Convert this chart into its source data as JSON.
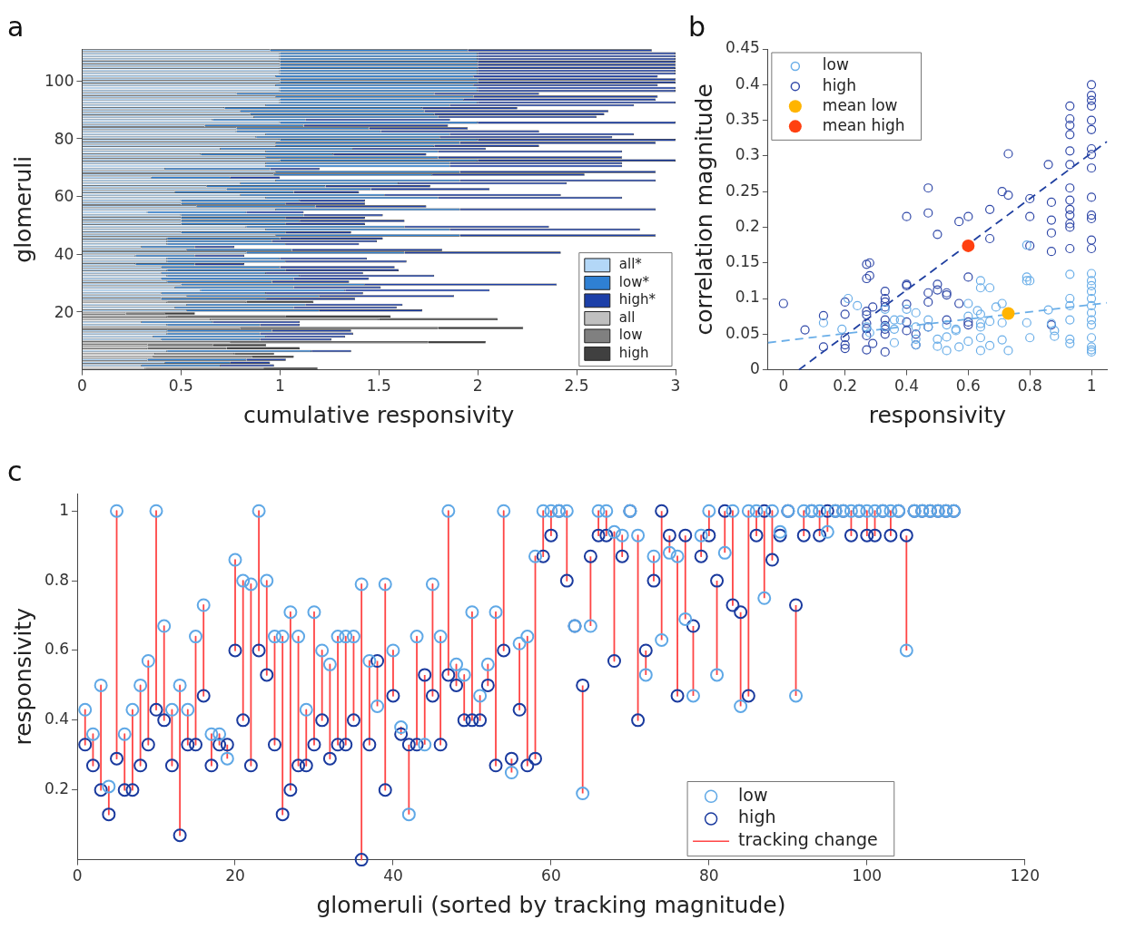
{
  "chart_data": [
    {
      "type": "bar",
      "title": "a",
      "orientation": "horizontal",
      "stacked": true,
      "xlabel": "cumulative responsivity",
      "ylabel": "glomeruli",
      "legend": "bottom right",
      "xlim": [
        0,
        3
      ],
      "xticks": [
        0,
        0.5,
        1,
        1.5,
        2,
        2.5,
        3
      ],
      "categories": [
        null,
        null,
        null,
        null,
        null,
        null,
        null,
        null,
        null,
        null,
        null,
        "100",
        null,
        null,
        null,
        null,
        null,
        null,
        null,
        null,
        null,
        null,
        null,
        null,
        null,
        null,
        null,
        null,
        null,
        null,
        null,
        "80",
        null,
        null,
        null,
        null,
        null,
        null,
        null,
        null,
        null,
        null,
        null,
        null,
        null,
        null,
        null,
        null,
        null,
        null,
        null,
        "60",
        null,
        null,
        null,
        null,
        null,
        null,
        null,
        null,
        null,
        null,
        null,
        null,
        null,
        null,
        null,
        null,
        null,
        null,
        null,
        "40",
        null,
        null,
        null,
        null,
        null,
        null,
        null,
        null,
        null,
        null,
        null,
        null,
        null,
        null,
        null,
        null,
        null,
        null,
        null,
        "20",
        null,
        null,
        null,
        null,
        null,
        null,
        null,
        null,
        null,
        null,
        null,
        null,
        null,
        null,
        null,
        null,
        null,
        null,
        null
      ],
      "series": [
        {
          "name": "all*",
          "color": "#b3d7f7",
          "values": [
            0.95,
            1,
            1,
            1,
            1,
            1,
            1,
            1,
            1,
            0.98,
            1,
            1,
            0.98,
            1,
            1,
            0.78,
            0.98,
            1,
            1,
            0.93,
            0.72,
            0.8,
            0.85,
            0.87,
            0.66,
            1,
            0.62,
            0.78,
            0.78,
            0.93,
            0.88,
            1,
            0.98,
            0.98,
            0.7,
            0.93,
            0.6,
            0.93,
            1,
            0.93,
            0.93,
            0.42,
            0.98,
            0.97,
            0.35,
            0.98,
            0.8,
            0.63,
            0.73,
            0.47,
            0.8,
            0.93,
            0.5,
            0.5,
            0.58,
            0.98,
            0.33,
            0.5,
            0.5,
            0.5,
            0.5,
            0.83,
            0.93,
            0.5,
            0.98,
            0.43,
            0.43,
            0.43,
            0.3,
            0.53,
            0.83,
            0.27,
            0.43,
            0.43,
            0.27,
            0.4,
            0.43,
            0.4,
            0.43,
            0.4,
            0.43,
            0.5,
            0.47,
            0.6,
            0.4,
            0.53,
            0.4,
            null,
            0.53,
            0.47,
            0.53,
            null,
            null,
            null,
            0.3,
            0.43,
            null,
            0.43,
            0.43,
            0.36,
            0.4,
            null,
            null,
            null,
            0.43,
            null,
            null,
            0.33,
            0.42,
            0.3,
            null
          ]
        },
        {
          "name": "low*",
          "color": "#2f80d3",
          "values": [
            1,
            1,
            1,
            1,
            1,
            1,
            1,
            1,
            1,
            1,
            1,
            1,
            1,
            1,
            1,
            1,
            1,
            0.93,
            1,
            0.93,
            1,
            0.93,
            0.93,
            0.93,
            0.47,
            1,
            0.5,
            0.67,
            0.73,
            0.93,
            0.93,
            1,
            0.93,
            0.8,
            0.67,
            0.87,
            0.67,
            0.87,
            1,
            0.93,
            0.93,
            0.53,
            0.93,
            0.8,
            0.4,
            0.93,
            0.8,
            0.6,
            0.73,
            0.6,
            0.73,
            0.87,
            0.6,
            0.53,
            0.6,
            0.93,
            0.5,
            0.62,
            0.53,
            0.6,
            0.53,
            0.8,
            0.93,
            0.53,
            0.93,
            0.57,
            0.53,
            0.6,
            0.27,
            0.53,
            0.8,
            0.3,
            0.57,
            0.6,
            0.3,
            0.6,
            0.6,
            0.53,
            0.67,
            0.67,
            0.53,
            0.93,
            0.6,
            0.73,
            0.53,
            0.67,
            0.53,
            null,
            0.6,
            0.6,
            0.67,
            null,
            null,
            null,
            0.36,
            0.47,
            null,
            0.53,
            0.47,
            0.57,
            0.5,
            null,
            null,
            null,
            0.73,
            null,
            null,
            0.5,
            0.33,
            0.4,
            null
          ]
        },
        {
          "name": "high*",
          "color": "#1c3fa8",
          "values": [
            0.93,
            1,
            1,
            1,
            1,
            1,
            1,
            1,
            1,
            0.93,
            1,
            1,
            0.93,
            1,
            1,
            0.53,
            0.93,
            0.97,
            1,
            0.93,
            0.48,
            0.93,
            0.86,
            0.8,
            0.73,
            1,
            0.73,
            0.5,
            0.8,
            0.93,
            0.87,
            1,
            0.99,
            0.53,
            0.67,
            0.93,
            0.47,
            0.93,
            1,
            0.87,
            0.87,
            0.25,
            0.99,
            0.77,
            0.25,
            0.99,
            0.85,
            0.53,
            0.6,
            0.33,
            0.89,
            0.93,
            0.33,
            0.4,
            0.56,
            0.99,
            0.29,
            0.4,
            0.4,
            0.53,
            0.4,
            0.73,
            0.96,
            0.33,
            0.99,
            0.52,
            0.53,
            0.37,
            0.2,
            0.76,
            0.79,
            0.25,
            0.44,
            0.61,
            0.25,
            0.58,
            0.57,
            0.49,
            0.68,
            0.38,
            0.39,
            0.97,
            0.44,
            0.73,
            0.49,
            0.68,
            0.45,
            null,
            0.49,
            0.52,
            0.52,
            null,
            null,
            null,
            0.44,
            0.2,
            null,
            0.4,
            0.47,
            0.4,
            0.36,
            null,
            null,
            null,
            0.2,
            null,
            null,
            0.2,
            0.2,
            0.27,
            null
          ]
        },
        {
          "name": "all",
          "color": "#c0c0c0",
          "values": [
            null,
            null,
            null,
            null,
            null,
            null,
            null,
            null,
            null,
            null,
            null,
            null,
            null,
            null,
            null,
            null,
            null,
            null,
            null,
            null,
            null,
            null,
            null,
            null,
            null,
            null,
            null,
            null,
            null,
            null,
            null,
            null,
            null,
            null,
            null,
            null,
            null,
            null,
            null,
            null,
            null,
            null,
            null,
            null,
            null,
            null,
            null,
            null,
            null,
            null,
            null,
            null,
            null,
            null,
            null,
            null,
            null,
            null,
            null,
            null,
            null,
            null,
            null,
            null,
            null,
            null,
            null,
            null,
            null,
            null,
            null,
            null,
            null,
            null,
            null,
            null,
            null,
            null,
            null,
            null,
            null,
            null,
            null,
            null,
            null,
            null,
            null,
            0.43,
            null,
            null,
            null,
            0.22,
            0.43,
            0.65,
            null,
            null,
            0.8,
            null,
            null,
            null,
            null,
            0.75,
            0.33,
            0.33,
            null,
            0.37,
            0.36,
            null,
            null,
            null,
            0.32
          ]
        },
        {
          "name": "low",
          "color": "#808080",
          "values": [
            null,
            null,
            null,
            null,
            null,
            null,
            null,
            null,
            null,
            null,
            null,
            null,
            null,
            null,
            null,
            null,
            null,
            null,
            null,
            null,
            null,
            null,
            null,
            null,
            null,
            null,
            null,
            null,
            null,
            null,
            null,
            null,
            null,
            null,
            null,
            null,
            null,
            null,
            null,
            null,
            null,
            null,
            null,
            null,
            null,
            null,
            null,
            null,
            null,
            null,
            null,
            null,
            null,
            null,
            null,
            null,
            null,
            null,
            null,
            null,
            null,
            null,
            null,
            null,
            null,
            null,
            null,
            null,
            null,
            null,
            null,
            null,
            null,
            null,
            null,
            null,
            null,
            null,
            null,
            null,
            null,
            null,
            null,
            null,
            null,
            null,
            null,
            0.4,
            null,
            null,
            null,
            0.2,
            0.6,
            0.85,
            null,
            null,
            1,
            null,
            null,
            null,
            null,
            1,
            0.33,
            0.4,
            null,
            0.4,
            0.5,
            null,
            null,
            null,
            0.6
          ]
        },
        {
          "name": "high",
          "color": "#404040",
          "values": [
            null,
            null,
            null,
            null,
            null,
            null,
            null,
            null,
            null,
            null,
            null,
            null,
            null,
            null,
            null,
            null,
            null,
            null,
            null,
            null,
            null,
            null,
            null,
            null,
            null,
            null,
            null,
            null,
            null,
            null,
            null,
            null,
            null,
            null,
            null,
            null,
            null,
            null,
            null,
            null,
            null,
            null,
            null,
            null,
            null,
            null,
            null,
            null,
            null,
            null,
            null,
            null,
            null,
            null,
            null,
            null,
            null,
            null,
            null,
            null,
            null,
            null,
            null,
            null,
            null,
            null,
            null,
            null,
            null,
            null,
            null,
            null,
            null,
            null,
            null,
            null,
            null,
            null,
            null,
            null,
            null,
            null,
            null,
            null,
            null,
            null,
            null,
            0.34,
            null,
            null,
            null,
            0.15,
            0.53,
            0.6,
            null,
            null,
            0.43,
            null,
            null,
            null,
            null,
            0.29,
            0.27,
            0.37,
            null,
            0.2,
            0.21,
            null,
            null,
            null,
            0.27
          ]
        }
      ]
    },
    {
      "type": "scatter",
      "title": "b",
      "xlabel": "responsivity",
      "ylabel": "correlation magnitude",
      "legend": "top left",
      "marker": "circle",
      "xlim": [
        -0.05,
        1.05
      ],
      "xticks": [
        0,
        0.2,
        0.4,
        0.6,
        0.8,
        1
      ],
      "ylim": [
        0,
        0.45
      ],
      "yticks": [
        0,
        0.05,
        0.1,
        0.15,
        0.2,
        0.25,
        0.3,
        0.35,
        0.4,
        0.45
      ],
      "series": [
        {
          "name": "low",
          "color": "#6aaee8",
          "x": [
            0.13,
            0.19,
            0.21,
            0.24,
            0.27,
            0.28,
            0.33,
            0.33,
            0.36,
            0.36,
            0.36,
            0.38,
            0.4,
            0.43,
            0.43,
            0.43,
            0.43,
            0.47,
            0.47,
            0.5,
            0.5,
            0.53,
            0.53,
            0.53,
            0.56,
            0.56,
            0.57,
            0.6,
            0.6,
            0.6,
            0.63,
            0.64,
            0.64,
            0.64,
            0.64,
            0.64,
            0.64,
            0.64,
            0.67,
            0.67,
            0.67,
            0.69,
            0.71,
            0.71,
            0.71,
            0.73,
            0.79,
            0.79,
            0.79,
            0.79,
            0.8,
            0.8,
            0.86,
            0.87,
            0.88,
            0.88,
            0.93,
            0.93,
            0.93,
            0.93,
            0.93,
            0.93,
            1,
            1,
            1,
            1,
            1,
            1,
            1,
            1,
            1,
            1,
            1,
            1,
            1
          ],
          "values": [
            0.066,
            0.057,
            0.1,
            0.09,
            0.06,
            0.052,
            0.085,
            0.06,
            0.07,
            0.057,
            0.038,
            0.07,
            0.085,
            0.08,
            0.06,
            0.043,
            0.035,
            0.07,
            0.06,
            0.043,
            0.033,
            0.063,
            0.046,
            0.027,
            0.057,
            0.055,
            0.032,
            0.093,
            0.075,
            0.04,
            0.083,
            0.125,
            0.115,
            0.078,
            0.065,
            0.06,
            0.045,
            0.027,
            0.115,
            0.068,
            0.034,
            0.088,
            0.093,
            0.066,
            0.042,
            0.027,
            0.13,
            0.125,
            0.175,
            0.066,
            0.125,
            0.045,
            0.084,
            0.065,
            0.055,
            0.047,
            0.134,
            0.1,
            0.09,
            0.07,
            0.043,
            0.037,
            0.135,
            0.125,
            0.118,
            0.11,
            0.1,
            0.09,
            0.08,
            0.07,
            0.063,
            0.045,
            0.032,
            0.028,
            0.025
          ]
        },
        {
          "name": "high",
          "color": "#3048a8",
          "x": [
            0,
            0.07,
            0.13,
            0.13,
            0.2,
            0.2,
            0.2,
            0.2,
            0.2,
            0.27,
            0.28,
            0.27,
            0.28,
            0.27,
            0.27,
            0.27,
            0.27,
            0.27,
            0.27,
            0.29,
            0.29,
            0.33,
            0.33,
            0.33,
            0.33,
            0.33,
            0.33,
            0.33,
            0.33,
            0.33,
            0.4,
            0.4,
            0.4,
            0.4,
            0.4,
            0.4,
            0.43,
            0.43,
            0.47,
            0.47,
            0.47,
            0.47,
            0.47,
            0.5,
            0.5,
            0.5,
            0.53,
            0.53,
            0.53,
            0.57,
            0.57,
            0.6,
            0.6,
            0.6,
            0.6,
            0.67,
            0.67,
            0.71,
            0.73,
            0.73,
            0.8,
            0.8,
            0.8,
            0.86,
            0.87,
            0.87,
            0.87,
            0.87,
            0.87,
            0.93,
            0.93,
            0.93,
            0.93,
            0.93,
            0.93,
            0.93,
            0.93,
            0.93,
            0.93,
            0.93,
            0.93,
            0.93,
            1,
            1,
            1,
            1,
            1,
            1,
            1,
            1,
            1,
            1,
            1,
            1,
            1,
            1
          ],
          "values": [
            0.093,
            0.056,
            0.076,
            0.032,
            0.095,
            0.078,
            0.045,
            0.035,
            0.03,
            0.148,
            0.15,
            0.128,
            0.132,
            0.082,
            0.077,
            0.065,
            0.058,
            0.048,
            0.028,
            0.088,
            0.037,
            0.11,
            0.1,
            0.095,
            0.088,
            0.07,
            0.062,
            0.057,
            0.05,
            0.025,
            0.215,
            0.12,
            0.118,
            0.092,
            0.067,
            0.055,
            0.05,
            0.035,
            0.255,
            0.22,
            0.108,
            0.095,
            0.06,
            0.19,
            0.12,
            0.112,
            0.108,
            0.105,
            0.07,
            0.208,
            0.093,
            0.215,
            0.13,
            0.067,
            0.063,
            0.225,
            0.184,
            0.25,
            0.245,
            0.303,
            0.24,
            0.215,
            0.174,
            0.288,
            0.235,
            0.21,
            0.192,
            0.166,
            0.063,
            0.37,
            0.352,
            0.343,
            0.33,
            0.307,
            0.288,
            0.255,
            0.238,
            0.225,
            0.217,
            0.205,
            0.2,
            0.17,
            0.4,
            0.385,
            0.378,
            0.37,
            0.35,
            0.337,
            0.31,
            0.302,
            0.283,
            0.242,
            0.217,
            0.212,
            0.182,
            0.17
          ]
        },
        {
          "name": "mean low",
          "color": "#ffb400",
          "marker": "circle",
          "x": [
            0.73
          ],
          "values": [
            0.079
          ]
        },
        {
          "name": "mean high",
          "color": "#ff4010",
          "marker": "circle",
          "x": [
            0.6
          ],
          "values": [
            0.174
          ]
        },
        {
          "type": "line",
          "color": "#6aaee8",
          "line_style": "dashed",
          "marker": "none",
          "x": [
            -0.05,
            1.05
          ],
          "values": [
            0.038,
            0.094
          ]
        },
        {
          "type": "line",
          "color": "#1f3fa0",
          "line_style": "dashed",
          "marker": "none",
          "x": [
            0.05,
            1.05
          ],
          "values": [
            0,
            0.32
          ]
        }
      ]
    },
    {
      "type": "scatter",
      "title": "c",
      "xlabel": "glomeruli (sorted by tracking magnitude)",
      "ylabel": "responsivity",
      "legend": "bottom right",
      "marker": "circle",
      "xlim": [
        0,
        120
      ],
      "xticks": [
        0,
        20,
        40,
        60,
        80,
        100,
        120
      ],
      "ylim": [
        0,
        1.05
      ],
      "yticks": [
        0.2,
        0.4,
        0.6,
        0.8,
        1
      ],
      "x": [
        1,
        2,
        3,
        4,
        5,
        6,
        7,
        8,
        9,
        10,
        11,
        12,
        13,
        14,
        15,
        16,
        17,
        18,
        19,
        20,
        21,
        22,
        23,
        24,
        25,
        26,
        27,
        28,
        29,
        30,
        31,
        32,
        33,
        34,
        35,
        36,
        37,
        38,
        39,
        40,
        41,
        42,
        43,
        44,
        45,
        46,
        47,
        48,
        49,
        50,
        51,
        52,
        53,
        54,
        55,
        56,
        57,
        58,
        59,
        60,
        61,
        62,
        63,
        64,
        65,
        66,
        67,
        68,
        69,
        70,
        71,
        72,
        73,
        74,
        75,
        76,
        77,
        78,
        79,
        80,
        81,
        82,
        83,
        84,
        85,
        86,
        87,
        88,
        89,
        90,
        91,
        92,
        93,
        94,
        95,
        96,
        97,
        98,
        99,
        100,
        101,
        102,
        103,
        104,
        105,
        106,
        107,
        108,
        109,
        110,
        111
      ],
      "series": [
        {
          "name": "low",
          "color": "#5fa8e6",
          "values": [
            0.43,
            0.36,
            0.5,
            0.21,
            1,
            0.36,
            0.43,
            0.5,
            0.57,
            1,
            0.67,
            0.43,
            0.5,
            0.43,
            0.64,
            0.73,
            0.36,
            0.36,
            0.29,
            0.86,
            0.8,
            0.79,
            1,
            0.8,
            0.64,
            0.64,
            0.71,
            0.64,
            0.43,
            0.71,
            0.6,
            0.56,
            0.64,
            0.64,
            0.64,
            0.79,
            0.57,
            0.44,
            0.79,
            0.6,
            0.38,
            0.13,
            0.64,
            0.33,
            0.79,
            0.64,
            1,
            0.56,
            0.53,
            0.71,
            0.47,
            0.56,
            0.71,
            1,
            0.25,
            0.62,
            0.64,
            0.87,
            1,
            1,
            1,
            1,
            0.67,
            0.19,
            0.67,
            1,
            1,
            0.94,
            0.93,
            1,
            0.93,
            0.53,
            0.87,
            0.63,
            0.88,
            0.87,
            0.69,
            0.47,
            0.93,
            1,
            0.53,
            0.88,
            1,
            0.44,
            1,
            1,
            0.75,
            1,
            0.94,
            1,
            0.47,
            1,
            1,
            1,
            0.94,
            1,
            1,
            1,
            1,
            1,
            1,
            1,
            1,
            1,
            0.6,
            1,
            1,
            1,
            1,
            1,
            1
          ]
        },
        {
          "name": "high",
          "color": "#1a3a9e",
          "values": [
            0.33,
            0.27,
            0.2,
            0.13,
            0.29,
            0.2,
            0.2,
            0.27,
            0.33,
            0.43,
            0.4,
            0.27,
            0.07,
            0.33,
            0.33,
            0.47,
            0.27,
            0.33,
            0.33,
            0.6,
            0.4,
            0.27,
            0.6,
            0.53,
            0.33,
            0.13,
            0.2,
            0.27,
            0.27,
            0.33,
            0.4,
            0.29,
            0.33,
            0.33,
            0.4,
            0,
            0.33,
            0.57,
            0.2,
            0.47,
            0.36,
            0.33,
            0.33,
            0.53,
            0.47,
            0.33,
            0.53,
            0.5,
            0.4,
            0.4,
            0.4,
            0.5,
            0.27,
            0.6,
            0.29,
            0.43,
            0.27,
            0.29,
            0.87,
            0.93,
            1,
            0.8,
            0.67,
            0.5,
            0.87,
            0.93,
            0.93,
            0.57,
            0.87,
            1,
            0.4,
            0.6,
            0.8,
            1,
            0.93,
            0.47,
            0.93,
            0.67,
            0.87,
            0.93,
            0.8,
            1,
            0.73,
            0.71,
            0.47,
            0.93,
            1,
            0.86,
            0.93,
            1,
            0.73,
            0.93,
            1,
            0.93,
            1,
            1,
            1,
            0.93,
            1,
            0.93,
            0.93,
            1,
            0.93,
            1,
            0.93,
            1,
            1,
            1,
            1,
            1,
            1
          ]
        },
        {
          "name": "tracking change",
          "type": "line",
          "color": "#ff4545",
          "marker": "none",
          "x": [
            1,
            1,
            null,
            2,
            2,
            null,
            3,
            3,
            null,
            4,
            4,
            null,
            5,
            5,
            null,
            6,
            6,
            null,
            7,
            7,
            null,
            8,
            8,
            null,
            9,
            9,
            null,
            10,
            10,
            null,
            11,
            11,
            null,
            12,
            12,
            null,
            13,
            13,
            null,
            14,
            14,
            null,
            15,
            15,
            null,
            16,
            16,
            null,
            17,
            17,
            null,
            18,
            18,
            null,
            19,
            19,
            null,
            20,
            20,
            null,
            21,
            21,
            null,
            22,
            22,
            null,
            23,
            23,
            null,
            24,
            24,
            null,
            25,
            25,
            null,
            26,
            26,
            null,
            27,
            27,
            null,
            28,
            28,
            null,
            29,
            29,
            null,
            30,
            30,
            null,
            31,
            31,
            null,
            32,
            32,
            null,
            33,
            33,
            null,
            34,
            34,
            null,
            35,
            35,
            null,
            36,
            36,
            null,
            37,
            37,
            null,
            38,
            38,
            null,
            39,
            39,
            null,
            40,
            40,
            null,
            41,
            41,
            null,
            42,
            42,
            null,
            43,
            43,
            null,
            44,
            44,
            null,
            45,
            45,
            null,
            46,
            46,
            null,
            47,
            47,
            null,
            48,
            48,
            null,
            49,
            49,
            null,
            50,
            50,
            null,
            51,
            51,
            null,
            52,
            52,
            null,
            53,
            53,
            null,
            54,
            54,
            null,
            55,
            55,
            null,
            56,
            56,
            null,
            57,
            57,
            null,
            58,
            58,
            null,
            59,
            59,
            null,
            60,
            60,
            null,
            62,
            62,
            null,
            64,
            64,
            null,
            65,
            65,
            null,
            66,
            66,
            null,
            67,
            67,
            null,
            68,
            68,
            null,
            69,
            69,
            null,
            71,
            71,
            null,
            72,
            72,
            null,
            73,
            73,
            null,
            74,
            74,
            null,
            75,
            75,
            null,
            76,
            76,
            null,
            77,
            77,
            null,
            78,
            78,
            null,
            79,
            79,
            null,
            80,
            80,
            null,
            81,
            81,
            null,
            82,
            82,
            null,
            83,
            83,
            null,
            84,
            84,
            null,
            85,
            85,
            null,
            86,
            86,
            null,
            87,
            87,
            null,
            88,
            88,
            null,
            91,
            91,
            null,
            92,
            92,
            null,
            94,
            94,
            null,
            95,
            95,
            null,
            98,
            98,
            null,
            100,
            100,
            null,
            101,
            101,
            null,
            103,
            103,
            null,
            105,
            105,
            null
          ],
          "values": [
            0.43,
            0.33,
            null,
            0.36,
            0.27,
            null,
            0.5,
            0.2,
            null,
            0.21,
            0.13,
            null,
            1,
            0.29,
            null,
            0.36,
            0.2,
            null,
            0.43,
            0.2,
            null,
            0.5,
            0.27,
            null,
            0.57,
            0.33,
            null,
            1,
            0.43,
            null,
            0.67,
            0.4,
            null,
            0.43,
            0.27,
            null,
            0.5,
            0.07,
            null,
            0.43,
            0.33,
            null,
            0.64,
            0.33,
            null,
            0.73,
            0.47,
            null,
            0.36,
            0.27,
            null,
            0.36,
            0.33,
            null,
            0.29,
            0.33,
            null,
            0.86,
            0.6,
            null,
            0.8,
            0.4,
            null,
            0.79,
            0.27,
            null,
            1,
            0.6,
            null,
            0.8,
            0.53,
            null,
            0.64,
            0.33,
            null,
            0.64,
            0.13,
            null,
            0.71,
            0.2,
            null,
            0.64,
            0.27,
            null,
            0.43,
            0.27,
            null,
            0.71,
            0.33,
            null,
            0.6,
            0.4,
            null,
            0.56,
            0.29,
            null,
            0.64,
            0.33,
            null,
            0.64,
            0.33,
            null,
            0.64,
            0.4,
            null,
            0.79,
            0,
            null,
            0.57,
            0.33,
            null,
            0.44,
            0.57,
            null,
            0.79,
            0.2,
            null,
            0.6,
            0.47,
            null,
            0.38,
            0.36,
            null,
            0.13,
            0.33,
            null,
            0.64,
            0.33,
            null,
            0.33,
            0.53,
            null,
            0.79,
            0.47,
            null,
            0.64,
            0.33,
            null,
            1,
            0.53,
            null,
            0.56,
            0.5,
            null,
            0.53,
            0.4,
            null,
            0.71,
            0.4,
            null,
            0.47,
            0.4,
            null,
            0.56,
            0.5,
            null,
            0.71,
            0.27,
            null,
            1,
            0.6,
            null,
            0.25,
            0.29,
            null,
            0.62,
            0.43,
            null,
            0.64,
            0.27,
            null,
            0.87,
            0.29,
            null,
            1,
            0.87,
            null,
            1,
            0.93,
            null,
            1,
            0.8,
            null,
            0.19,
            0.5,
            null,
            0.67,
            0.87,
            null,
            1,
            0.93,
            null,
            1,
            0.93,
            null,
            0.94,
            0.57,
            null,
            0.93,
            0.87,
            null,
            0.93,
            0.4,
            null,
            0.53,
            0.6,
            null,
            0.87,
            0.8,
            null,
            0.63,
            1,
            null,
            0.88,
            0.93,
            null,
            0.87,
            0.47,
            null,
            0.69,
            0.93,
            null,
            0.47,
            0.67,
            null,
            0.93,
            0.87,
            null,
            1,
            0.93,
            null,
            0.53,
            0.8,
            null,
            0.88,
            1,
            null,
            1,
            0.73,
            null,
            0.44,
            0.71,
            null,
            1,
            0.47,
            null,
            1,
            0.93,
            null,
            0.75,
            1,
            null,
            1,
            0.86,
            null,
            0.47,
            0.73,
            null,
            1,
            0.93,
            null,
            1,
            0.93,
            null,
            0.94,
            1,
            null,
            1,
            0.93,
            null,
            1,
            0.93,
            null,
            1,
            0.93,
            null,
            1,
            0.93,
            null,
            0.6,
            0.93,
            null
          ]
        }
      ]
    }
  ]
}
